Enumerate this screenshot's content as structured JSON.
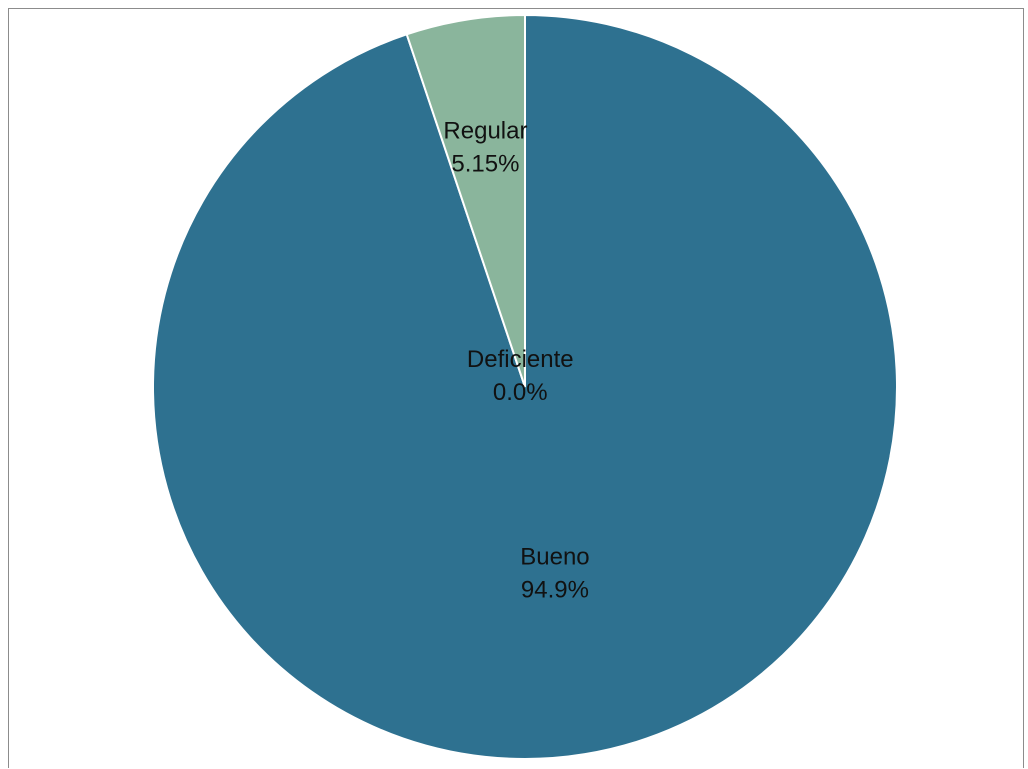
{
  "chart_data": {
    "type": "pie",
    "title": "",
    "slices": [
      {
        "label": "Bueno",
        "value": 94.85,
        "display": "94.9%",
        "color": "#2e7190"
      },
      {
        "label": "Regular",
        "value": 5.15,
        "display": "5.15%",
        "color": "#8ab59c"
      },
      {
        "label": "Deficiente",
        "value": 0.0,
        "display": "0.0%",
        "color": "#d9d9d9"
      }
    ],
    "start_angle": "12 o'clock",
    "direction": "clockwise",
    "legend": "none",
    "slice_border_color": "#ffffff"
  }
}
